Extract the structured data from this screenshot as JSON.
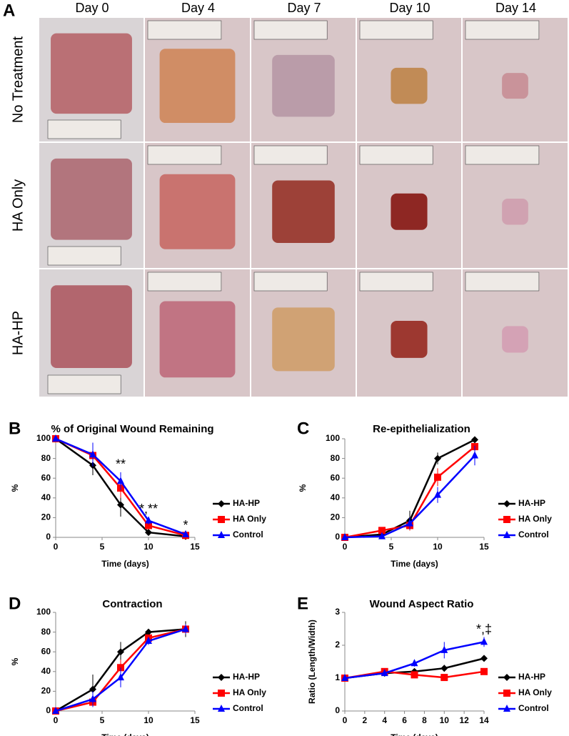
{
  "panel_a": {
    "panel": "A",
    "columns": [
      "Day 0",
      "Day 4",
      "Day 7",
      "Day 10",
      "Day 14"
    ],
    "rows": [
      "No Treatment",
      "HA Only",
      "HA-HP"
    ]
  },
  "chart_data": [
    {
      "type": "line",
      "panel": "B",
      "title": "% of Original Wound Remaining",
      "x_label": "Time (days)",
      "y_label": "%",
      "x": [
        0,
        4,
        7,
        10,
        14
      ],
      "xlim": [
        0,
        15
      ],
      "xticks": [
        0,
        5,
        10,
        15
      ],
      "ylim": [
        0,
        100
      ],
      "yticks": [
        0,
        20,
        40,
        60,
        80,
        100
      ],
      "series": [
        {
          "name": "HA-HP",
          "color": "#000000",
          "marker": "diamond",
          "values": [
            100,
            73,
            33,
            5,
            1
          ],
          "errors": [
            0,
            10,
            12,
            3,
            1
          ]
        },
        {
          "name": "HA Only",
          "color": "#ff0000",
          "marker": "square",
          "values": [
            100,
            83,
            50,
            12,
            2
          ],
          "errors": [
            0,
            8,
            10,
            4,
            1
          ]
        },
        {
          "name": "Control",
          "color": "#0000ff",
          "marker": "triangle",
          "values": [
            100,
            84,
            57,
            17,
            3
          ],
          "errors": [
            0,
            12,
            9,
            4,
            1
          ]
        }
      ],
      "annotations": [
        {
          "text": "**",
          "at": 7
        },
        {
          "text": "*,**",
          "at": 10
        },
        {
          "text": "*",
          "at": 14
        }
      ]
    },
    {
      "type": "line",
      "panel": "C",
      "title": "Re-epithelialization",
      "x_label": "Time (days)",
      "y_label": "%",
      "x": [
        0,
        4,
        7,
        10,
        14
      ],
      "xlim": [
        0,
        15
      ],
      "xticks": [
        0,
        5,
        10,
        15
      ],
      "ylim": [
        0,
        100
      ],
      "yticks": [
        0,
        20,
        40,
        60,
        80,
        100
      ],
      "series": [
        {
          "name": "HA-HP",
          "color": "#000000",
          "marker": "diamond",
          "values": [
            0,
            3,
            17,
            80,
            99
          ],
          "errors": [
            0,
            1,
            10,
            6,
            1
          ]
        },
        {
          "name": "HA Only",
          "color": "#ff0000",
          "marker": "square",
          "values": [
            0,
            7,
            12,
            61,
            92
          ],
          "errors": [
            0,
            1,
            5,
            9,
            3
          ]
        },
        {
          "name": "Control",
          "color": "#0000ff",
          "marker": "triangle",
          "values": [
            0,
            1,
            14,
            43,
            83
          ],
          "errors": [
            0,
            1,
            6,
            8,
            10
          ]
        }
      ],
      "annotations": []
    },
    {
      "type": "line",
      "panel": "D",
      "title": "Contraction",
      "x_label": "Time (days)",
      "y_label": "%",
      "x": [
        0,
        4,
        7,
        10,
        14
      ],
      "xlim": [
        0,
        15
      ],
      "xticks": [
        0,
        5,
        10,
        15
      ],
      "ylim": [
        0,
        100
      ],
      "yticks": [
        0,
        20,
        40,
        60,
        80,
        100
      ],
      "series": [
        {
          "name": "HA-HP",
          "color": "#000000",
          "marker": "diamond",
          "values": [
            0,
            22,
            60,
            80,
            83
          ],
          "errors": [
            0,
            15,
            10,
            2,
            8
          ]
        },
        {
          "name": "HA Only",
          "color": "#ff0000",
          "marker": "square",
          "values": [
            0,
            9,
            44,
            74,
            83
          ],
          "errors": [
            0,
            5,
            8,
            3,
            5
          ]
        },
        {
          "name": "Control",
          "color": "#0000ff",
          "marker": "triangle",
          "values": [
            0,
            12,
            34,
            71,
            83
          ],
          "errors": [
            0,
            8,
            10,
            4,
            5
          ]
        }
      ],
      "annotations": []
    },
    {
      "type": "line",
      "panel": "E",
      "title": "Wound Aspect Ratio",
      "x_label": "Time (days)",
      "y_label": "Ratio (Length/Width)",
      "x": [
        0,
        4,
        7,
        10,
        14
      ],
      "xlim": [
        0,
        14
      ],
      "xticks": [
        0,
        2,
        4,
        6,
        8,
        10,
        12,
        14
      ],
      "ylim": [
        0,
        3
      ],
      "yticks": [
        0,
        1,
        2,
        3
      ],
      "series": [
        {
          "name": "HA-HP",
          "color": "#000000",
          "marker": "diamond",
          "values": [
            1,
            1.15,
            1.2,
            1.3,
            1.6
          ],
          "errors": [
            0,
            0.05,
            0.08,
            0.1,
            0.08
          ]
        },
        {
          "name": "HA Only",
          "color": "#ff0000",
          "marker": "square",
          "values": [
            1,
            1.2,
            1.1,
            1.02,
            1.2
          ],
          "errors": [
            0,
            0.05,
            0.08,
            0.1,
            0.08
          ]
        },
        {
          "name": "Control",
          "color": "#0000ff",
          "marker": "triangle",
          "values": [
            1,
            1.15,
            1.45,
            1.85,
            2.1
          ],
          "errors": [
            0,
            0.05,
            0.1,
            0.25,
            0.15
          ]
        }
      ],
      "annotations": [
        {
          "text": "*,‡",
          "at": 14
        }
      ]
    }
  ]
}
